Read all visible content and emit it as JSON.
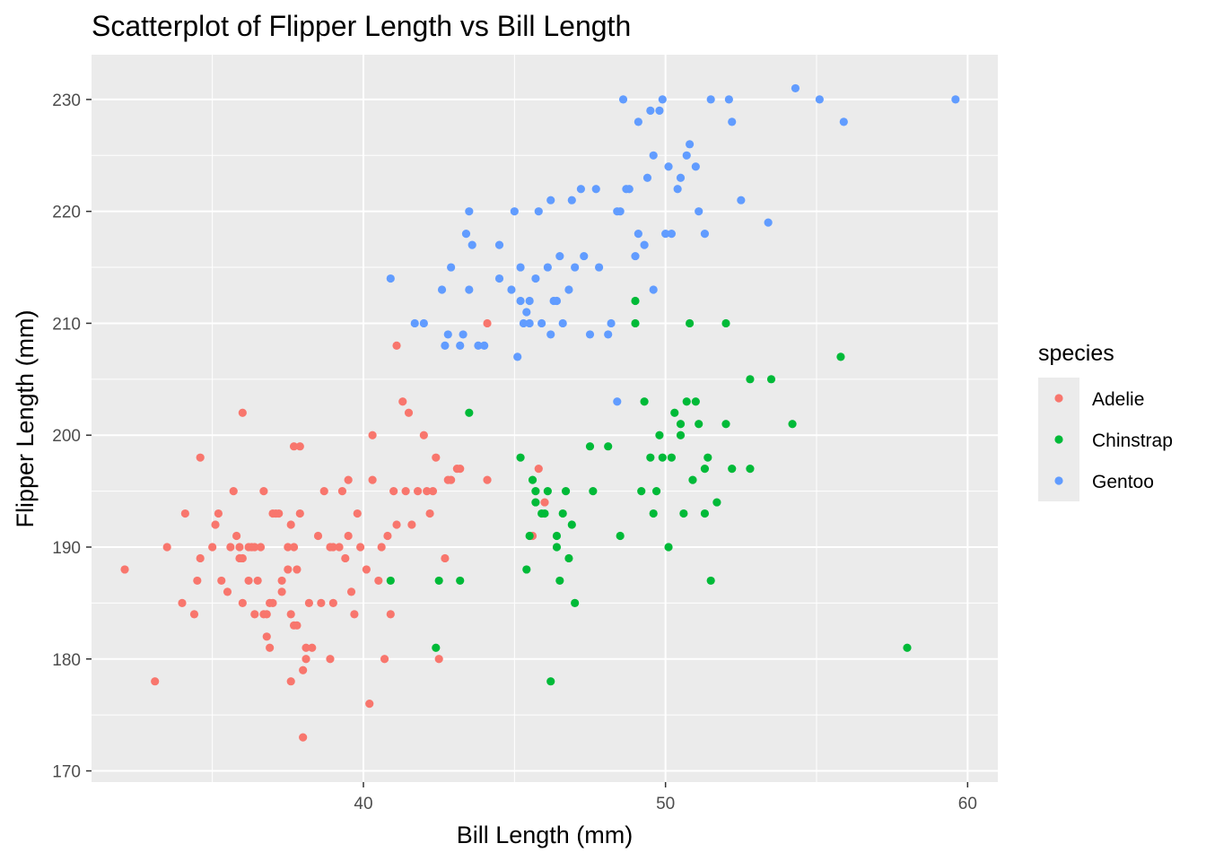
{
  "chart_data": {
    "type": "scatter",
    "title": "Scatterplot of Flipper Length vs Bill Length",
    "xlabel": "Bill Length (mm)",
    "ylabel": "Flipper Length (mm)",
    "xlim": [
      31.0,
      61.0
    ],
    "ylim": [
      169.0,
      234.0
    ],
    "x_ticks": [
      40,
      50,
      60
    ],
    "y_ticks": [
      170,
      180,
      190,
      200,
      210,
      220,
      230
    ],
    "x_tick_labels": [
      "40",
      "50",
      "60"
    ],
    "y_tick_labels": [
      "170",
      "180",
      "190",
      "200",
      "210",
      "220",
      "230"
    ],
    "grid": true,
    "panel_background": "#ebebeb",
    "legend": {
      "title": "species",
      "position": "right"
    },
    "series": [
      {
        "name": "Adelie",
        "color": "#f8766d",
        "points": [
          [
            32.1,
            188
          ],
          [
            33.1,
            178
          ],
          [
            33.5,
            190
          ],
          [
            34.0,
            185
          ],
          [
            34.1,
            193
          ],
          [
            34.4,
            184
          ],
          [
            34.5,
            187
          ],
          [
            34.6,
            189
          ],
          [
            34.6,
            198
          ],
          [
            35.0,
            190
          ],
          [
            35.1,
            192
          ],
          [
            35.2,
            193
          ],
          [
            35.3,
            187
          ],
          [
            35.5,
            186
          ],
          [
            35.6,
            190
          ],
          [
            35.7,
            195
          ],
          [
            35.8,
            191
          ],
          [
            35.9,
            190
          ],
          [
            35.9,
            189
          ],
          [
            36.0,
            185
          ],
          [
            36.0,
            202
          ],
          [
            36.0,
            189
          ],
          [
            36.2,
            190
          ],
          [
            36.2,
            187
          ],
          [
            36.3,
            190
          ],
          [
            36.4,
            184
          ],
          [
            36.4,
            190
          ],
          [
            36.5,
            187
          ],
          [
            36.6,
            190
          ],
          [
            36.7,
            184
          ],
          [
            36.7,
            195
          ],
          [
            36.8,
            184
          ],
          [
            36.8,
            182
          ],
          [
            36.9,
            185
          ],
          [
            36.9,
            181
          ],
          [
            37.0,
            185
          ],
          [
            37.0,
            193
          ],
          [
            37.1,
            193
          ],
          [
            37.2,
            193
          ],
          [
            37.3,
            187
          ],
          [
            37.3,
            186
          ],
          [
            37.5,
            190
          ],
          [
            37.5,
            188
          ],
          [
            37.6,
            184
          ],
          [
            37.6,
            192
          ],
          [
            37.6,
            178
          ],
          [
            37.7,
            190
          ],
          [
            37.7,
            199
          ],
          [
            37.7,
            183
          ],
          [
            37.8,
            183
          ],
          [
            37.8,
            188
          ],
          [
            37.9,
            199
          ],
          [
            37.9,
            193
          ],
          [
            38.0,
            179
          ],
          [
            38.0,
            173
          ],
          [
            38.1,
            181
          ],
          [
            38.1,
            180
          ],
          [
            38.2,
            185
          ],
          [
            38.3,
            181
          ],
          [
            38.5,
            191
          ],
          [
            38.6,
            185
          ],
          [
            38.7,
            195
          ],
          [
            38.9,
            180
          ],
          [
            38.9,
            190
          ],
          [
            39.0,
            190
          ],
          [
            39.0,
            185
          ],
          [
            39.2,
            190
          ],
          [
            39.3,
            195
          ],
          [
            39.4,
            189
          ],
          [
            39.5,
            191
          ],
          [
            39.5,
            196
          ],
          [
            39.6,
            186
          ],
          [
            39.7,
            184
          ],
          [
            39.8,
            193
          ],
          [
            39.9,
            190
          ],
          [
            40.1,
            188
          ],
          [
            40.2,
            176
          ],
          [
            40.3,
            196
          ],
          [
            40.3,
            200
          ],
          [
            40.5,
            187
          ],
          [
            40.6,
            190
          ],
          [
            40.7,
            180
          ],
          [
            40.8,
            191
          ],
          [
            40.9,
            184
          ],
          [
            41.0,
            195
          ],
          [
            41.1,
            192
          ],
          [
            41.1,
            208
          ],
          [
            41.3,
            203
          ],
          [
            41.4,
            195
          ],
          [
            41.5,
            202
          ],
          [
            41.6,
            192
          ],
          [
            41.8,
            195
          ],
          [
            42.0,
            200
          ],
          [
            42.1,
            195
          ],
          [
            42.2,
            193
          ],
          [
            42.3,
            195
          ],
          [
            42.4,
            198
          ],
          [
            42.5,
            180
          ],
          [
            42.7,
            189
          ],
          [
            42.8,
            196
          ],
          [
            42.9,
            196
          ],
          [
            43.1,
            197
          ],
          [
            43.2,
            197
          ],
          [
            44.1,
            210
          ],
          [
            44.1,
            196
          ],
          [
            45.6,
            191
          ],
          [
            45.8,
            197
          ],
          [
            46.0,
            194
          ]
        ]
      },
      {
        "name": "Chinstrap",
        "color": "#00ba38",
        "points": [
          [
            40.9,
            187
          ],
          [
            42.4,
            181
          ],
          [
            42.5,
            187
          ],
          [
            43.2,
            187
          ],
          [
            43.5,
            202
          ],
          [
            45.2,
            198
          ],
          [
            45.4,
            188
          ],
          [
            45.5,
            191
          ],
          [
            45.6,
            196
          ],
          [
            45.7,
            194
          ],
          [
            45.7,
            195
          ],
          [
            45.9,
            193
          ],
          [
            46.0,
            193
          ],
          [
            46.1,
            195
          ],
          [
            46.2,
            178
          ],
          [
            46.4,
            191
          ],
          [
            46.4,
            190
          ],
          [
            46.5,
            187
          ],
          [
            46.6,
            193
          ],
          [
            46.7,
            195
          ],
          [
            46.8,
            189
          ],
          [
            46.9,
            192
          ],
          [
            47.0,
            185
          ],
          [
            47.5,
            199
          ],
          [
            47.6,
            195
          ],
          [
            48.1,
            199
          ],
          [
            48.5,
            191
          ],
          [
            49.0,
            210
          ],
          [
            49.0,
            212
          ],
          [
            49.2,
            195
          ],
          [
            49.3,
            203
          ],
          [
            49.5,
            198
          ],
          [
            49.6,
            193
          ],
          [
            49.7,
            195
          ],
          [
            49.8,
            200
          ],
          [
            49.9,
            198
          ],
          [
            50.1,
            190
          ],
          [
            50.2,
            198
          ],
          [
            50.3,
            202
          ],
          [
            50.5,
            200
          ],
          [
            50.5,
            201
          ],
          [
            50.6,
            193
          ],
          [
            50.7,
            203
          ],
          [
            50.8,
            210
          ],
          [
            50.9,
            196
          ],
          [
            51.0,
            203
          ],
          [
            51.1,
            201
          ],
          [
            51.3,
            197
          ],
          [
            51.3,
            193
          ],
          [
            51.4,
            198
          ],
          [
            51.5,
            187
          ],
          [
            51.7,
            194
          ],
          [
            52.0,
            201
          ],
          [
            52.0,
            210
          ],
          [
            52.2,
            197
          ],
          [
            52.8,
            197
          ],
          [
            53.5,
            205
          ],
          [
            52.8,
            205
          ],
          [
            54.2,
            201
          ],
          [
            55.8,
            207
          ],
          [
            58.0,
            181
          ]
        ]
      },
      {
        "name": "Gentoo",
        "color": "#619cff",
        "points": [
          [
            40.9,
            214
          ],
          [
            41.7,
            210
          ],
          [
            42.0,
            210
          ],
          [
            42.6,
            213
          ],
          [
            42.7,
            208
          ],
          [
            42.8,
            209
          ],
          [
            42.9,
            215
          ],
          [
            43.2,
            208
          ],
          [
            43.3,
            209
          ],
          [
            43.4,
            218
          ],
          [
            43.5,
            213
          ],
          [
            43.5,
            220
          ],
          [
            43.6,
            217
          ],
          [
            43.8,
            208
          ],
          [
            44.0,
            208
          ],
          [
            44.5,
            214
          ],
          [
            44.5,
            217
          ],
          [
            44.9,
            213
          ],
          [
            45.0,
            220
          ],
          [
            45.1,
            207
          ],
          [
            45.2,
            212
          ],
          [
            45.2,
            215
          ],
          [
            45.3,
            210
          ],
          [
            45.4,
            211
          ],
          [
            45.5,
            210
          ],
          [
            45.5,
            212
          ],
          [
            45.7,
            214
          ],
          [
            45.8,
            220
          ],
          [
            45.9,
            210
          ],
          [
            46.1,
            215
          ],
          [
            46.2,
            209
          ],
          [
            46.2,
            221
          ],
          [
            46.3,
            212
          ],
          [
            46.4,
            212
          ],
          [
            46.5,
            216
          ],
          [
            46.6,
            210
          ],
          [
            46.8,
            213
          ],
          [
            46.9,
            221
          ],
          [
            47.0,
            215
          ],
          [
            47.2,
            222
          ],
          [
            47.3,
            216
          ],
          [
            47.5,
            209
          ],
          [
            47.7,
            222
          ],
          [
            47.8,
            215
          ],
          [
            48.1,
            209
          ],
          [
            48.2,
            210
          ],
          [
            48.4,
            220
          ],
          [
            48.5,
            220
          ],
          [
            48.6,
            230
          ],
          [
            48.7,
            222
          ],
          [
            48.8,
            222
          ],
          [
            49.0,
            216
          ],
          [
            49.1,
            218
          ],
          [
            49.1,
            228
          ],
          [
            49.3,
            217
          ],
          [
            49.4,
            223
          ],
          [
            49.5,
            229
          ],
          [
            49.6,
            225
          ],
          [
            49.8,
            229
          ],
          [
            49.9,
            230
          ],
          [
            50.0,
            218
          ],
          [
            50.1,
            224
          ],
          [
            50.2,
            218
          ],
          [
            50.4,
            222
          ],
          [
            50.5,
            223
          ],
          [
            50.7,
            225
          ],
          [
            50.8,
            226
          ],
          [
            51.0,
            224
          ],
          [
            51.1,
            220
          ],
          [
            51.3,
            218
          ],
          [
            51.5,
            230
          ],
          [
            52.1,
            230
          ],
          [
            52.2,
            228
          ],
          [
            52.5,
            221
          ],
          [
            53.4,
            219
          ],
          [
            54.3,
            231
          ],
          [
            55.1,
            230
          ],
          [
            55.9,
            228
          ],
          [
            59.6,
            230
          ],
          [
            48.4,
            203
          ],
          [
            49.6,
            213
          ]
        ]
      }
    ]
  }
}
